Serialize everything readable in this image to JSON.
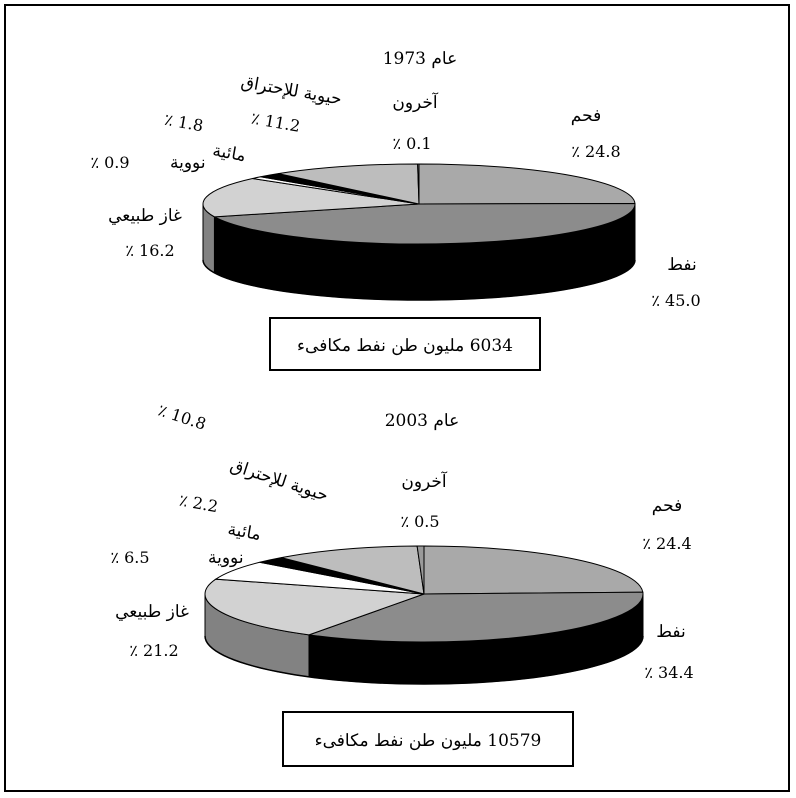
{
  "colors": {
    "coal": "#a9a9a9",
    "oil": "#8c8c8c",
    "gas": "#d2d2d2",
    "nuclear": "#ffffff",
    "hydro": "#000000",
    "biomass": "#bdbdbd",
    "others": "#9a9a9a",
    "side_dark": "#000000",
    "outline": "#000000"
  },
  "chart_data": [
    {
      "type": "pie",
      "title": "عام 1973",
      "total_label": "6034 مليون طن نفط مكافىء",
      "slices": [
        {
          "key": "coal",
          "name": "فحم",
          "value_text": "٪ 24.8",
          "value": 24.8
        },
        {
          "key": "oil",
          "name": "نفط",
          "value_text": "٪ 45.0",
          "value": 45.0
        },
        {
          "key": "gas",
          "name": "غاز طبيعي",
          "value_text": "٪ 16.2",
          "value": 16.2
        },
        {
          "key": "nuclear",
          "name": "نووية",
          "value_text": "٪ 0.9",
          "value": 0.9
        },
        {
          "key": "hydro",
          "name": "مائية",
          "value_text": "٪ 1.8",
          "value": 1.8
        },
        {
          "key": "biomass",
          "name": "حيوية للإحتراق",
          "value_text": "٪ 11.2",
          "value": 11.2
        },
        {
          "key": "others",
          "name": "آخرون",
          "value_text": "٪ 0.1",
          "value": 0.1
        }
      ]
    },
    {
      "type": "pie",
      "title": "عام 2003",
      "total_label": "10579 مليون طن نفط مكافىء",
      "slices": [
        {
          "key": "coal",
          "name": "فحم",
          "value_text": "٪ 24.4",
          "value": 24.4
        },
        {
          "key": "oil",
          "name": "نفط",
          "value_text": "٪ 34.4",
          "value": 34.4
        },
        {
          "key": "gas",
          "name": "غاز طبيعي",
          "value_text": "٪ 21.2",
          "value": 21.2
        },
        {
          "key": "nuclear",
          "name": "نووية",
          "value_text": "٪ 6.5",
          "value": 6.5
        },
        {
          "key": "hydro",
          "name": "مائية",
          "value_text": "٪ 2.2",
          "value": 2.2
        },
        {
          "key": "biomass",
          "name": "حيوية للإحتراق",
          "value_text": "٪ 10.8",
          "value": 10.8
        },
        {
          "key": "others",
          "name": "آخرون",
          "value_text": "٪ 0.5",
          "value": 0.5
        }
      ]
    }
  ]
}
